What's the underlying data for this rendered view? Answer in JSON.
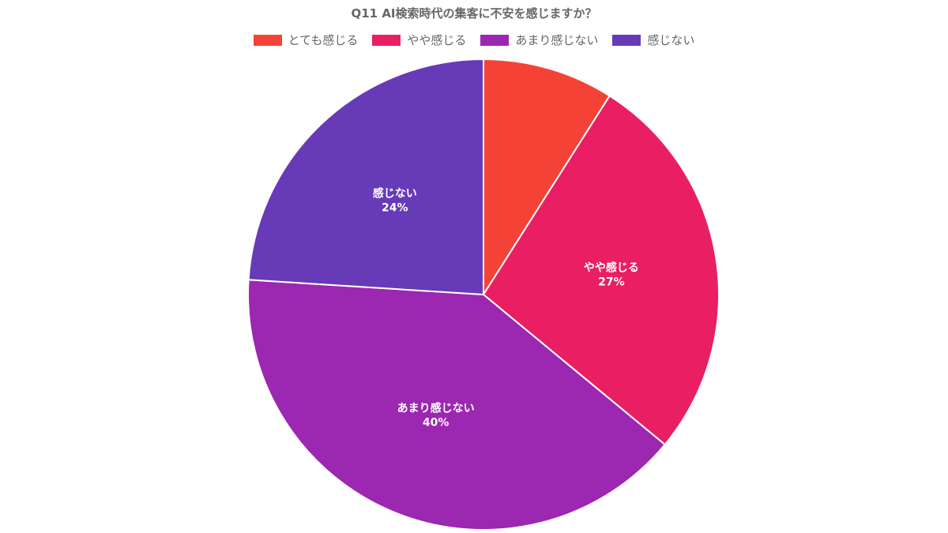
{
  "chart_data": {
    "type": "pie",
    "title": "Q11 AI検索時代の集客に不安を感じますか？",
    "legend": "top",
    "slices": [
      {
        "label": "とても感じる",
        "value": 9,
        "value_label": "",
        "color": "#F44336"
      },
      {
        "label": "やや感じる",
        "value": 27,
        "value_label": "27%",
        "color": "#E91E63"
      },
      {
        "label": "あまり感じない",
        "value": 40,
        "value_label": "40%",
        "color": "#9C27B0"
      },
      {
        "label": "感じない",
        "value": 24,
        "value_label": "24%",
        "color": "#673AB7"
      }
    ]
  }
}
